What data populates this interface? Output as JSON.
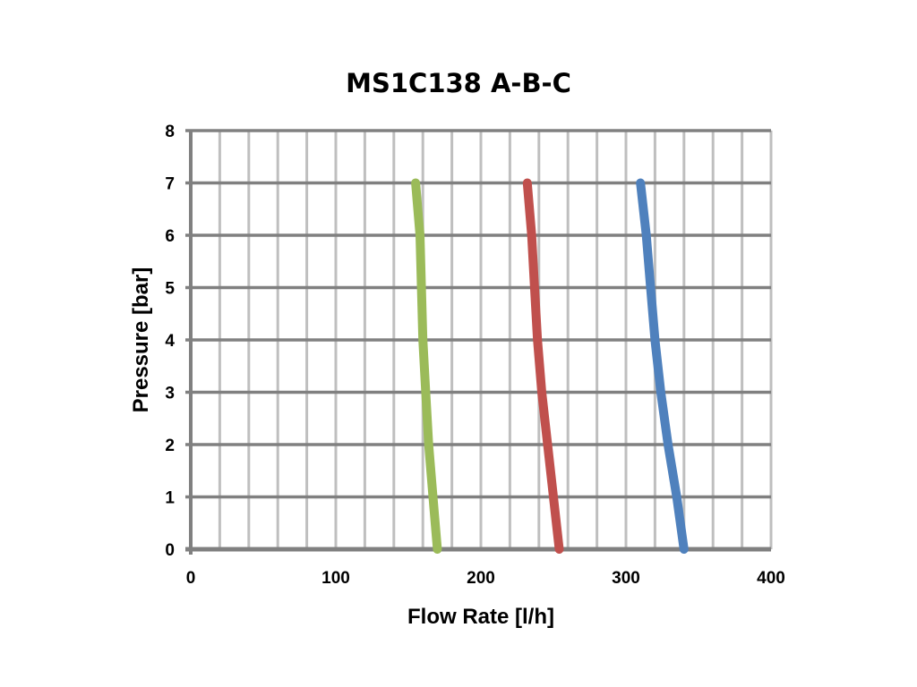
{
  "chart_data": {
    "type": "line",
    "title": "MS1C138 A-B-C",
    "xlabel": "Flow Rate [l/h]",
    "ylabel": "Pressure [bar]",
    "xlim": [
      0,
      400
    ],
    "ylim": [
      0,
      8
    ],
    "x_ticks": [
      0,
      100,
      200,
      300,
      400
    ],
    "y_ticks": [
      0,
      1,
      2,
      3,
      4,
      5,
      6,
      7,
      8
    ],
    "grid": true,
    "legend": "none",
    "series": [
      {
        "color": "#9BBB59",
        "points": [
          [
            170,
            0
          ],
          [
            167,
            1
          ],
          [
            164,
            2
          ],
          [
            162,
            3
          ],
          [
            160,
            4
          ],
          [
            159,
            5
          ],
          [
            158,
            6
          ],
          [
            155,
            7
          ]
        ]
      },
      {
        "color": "#C0504D",
        "points": [
          [
            254,
            0
          ],
          [
            250,
            1
          ],
          [
            246,
            2
          ],
          [
            242,
            3
          ],
          [
            239,
            4
          ],
          [
            237,
            5
          ],
          [
            235,
            6
          ],
          [
            232,
            7
          ]
        ]
      },
      {
        "color": "#4F81BD",
        "points": [
          [
            340,
            0
          ],
          [
            335,
            1
          ],
          [
            329,
            2
          ],
          [
            324,
            3
          ],
          [
            320,
            4
          ],
          [
            317,
            5
          ],
          [
            314,
            6
          ],
          [
            310,
            7
          ]
        ]
      }
    ]
  },
  "colors": {
    "grid": "#BFBFBF",
    "axis": "#808080"
  }
}
